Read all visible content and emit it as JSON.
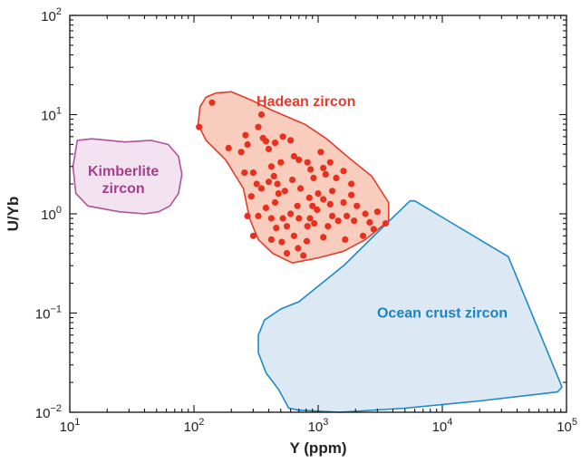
{
  "chart_data": {
    "type": "scatter",
    "xlabel": "Y (ppm)",
    "ylabel": "U/Yb",
    "x_scale": "log",
    "y_scale": "log",
    "xlim": [
      10,
      100000
    ],
    "ylim": [
      0.01,
      100
    ],
    "x_ticks": [
      {
        "value": 10,
        "base": "10",
        "exp": "1"
      },
      {
        "value": 100,
        "base": "10",
        "exp": "2"
      },
      {
        "value": 1000,
        "base": "10",
        "exp": "3"
      },
      {
        "value": 10000,
        "base": "10",
        "exp": "4"
      },
      {
        "value": 100000,
        "base": "10",
        "exp": "5"
      }
    ],
    "y_ticks": [
      {
        "value": 0.01,
        "base": "10",
        "exp": "−2"
      },
      {
        "value": 0.1,
        "base": "10",
        "exp": "−1"
      },
      {
        "value": 1,
        "base": "10",
        "exp": "0"
      },
      {
        "value": 10,
        "base": "10",
        "exp": "1"
      },
      {
        "value": 100,
        "base": "10",
        "exp": "2"
      }
    ],
    "grid": false,
    "regions": [
      {
        "name": "Kimberlite zircon",
        "label_lines": [
          "Kimberlite",
          "zircon"
        ],
        "label_at": [
          27,
          2.2
        ],
        "stroke": "#b0519c",
        "fill": "#f3e2f0",
        "text_color": "#a63d8e",
        "polygon": [
          [
            11.5,
            5.5
          ],
          [
            15,
            5.7
          ],
          [
            28,
            5.3
          ],
          [
            45,
            5.5
          ],
          [
            62,
            5.0
          ],
          [
            75,
            3.8
          ],
          [
            80,
            2.5
          ],
          [
            75,
            1.6
          ],
          [
            64,
            1.2
          ],
          [
            52,
            1.05
          ],
          [
            40,
            1.0
          ],
          [
            25,
            1.05
          ],
          [
            14,
            1.2
          ],
          [
            11.2,
            1.6
          ],
          [
            10.6,
            3.0
          ]
        ]
      },
      {
        "name": "Hadean zircon",
        "label_lines": [
          "Hadean zircon"
        ],
        "label_at": [
          800,
          13.5
        ],
        "stroke": "#e53b2b",
        "fill": "#f9cdbd",
        "text_color": "#e53b2b",
        "polygon": [
          [
            150,
            16.5
          ],
          [
            200,
            17
          ],
          [
            290,
            14
          ],
          [
            430,
            11
          ],
          [
            780,
            8
          ],
          [
            1150,
            5.8
          ],
          [
            1800,
            3.6
          ],
          [
            2700,
            2.4
          ],
          [
            3700,
            1.3
          ],
          [
            3700,
            0.85
          ],
          [
            2400,
            0.55
          ],
          [
            1600,
            0.42
          ],
          [
            1000,
            0.36
          ],
          [
            620,
            0.32
          ],
          [
            430,
            0.4
          ],
          [
            330,
            0.55
          ],
          [
            280,
            0.9
          ],
          [
            250,
            1.8
          ],
          [
            180,
            3.5
          ],
          [
            125,
            5.5
          ],
          [
            108,
            8
          ],
          [
            112,
            12
          ],
          [
            125,
            15
          ]
        ]
      },
      {
        "name": "Ocean crust zircon",
        "label_lines": [
          "Ocean crust zircon"
        ],
        "label_at": [
          10000,
          0.1
        ],
        "stroke": "#1c8ac6",
        "fill": "#dce9f5",
        "text_color": "#1c82c1",
        "polygon": [
          [
            5500,
            1.35
          ],
          [
            6000,
            1.35
          ],
          [
            34000,
            0.37
          ],
          [
            92000,
            0.018
          ],
          [
            85000,
            0.016
          ],
          [
            20000,
            0.013
          ],
          [
            5000,
            0.011
          ],
          [
            1500,
            0.01
          ],
          [
            700,
            0.0105
          ],
          [
            580,
            0.011
          ],
          [
            480,
            0.017
          ],
          [
            380,
            0.025
          ],
          [
            330,
            0.04
          ],
          [
            330,
            0.06
          ],
          [
            370,
            0.085
          ],
          [
            500,
            0.11
          ],
          [
            700,
            0.13
          ],
          [
            1600,
            0.3
          ],
          [
            3000,
            0.65
          ]
        ]
      }
    ],
    "series": [
      {
        "name": "Hadean zircon",
        "color": "#e8301e",
        "points": [
          [
            140,
            13.2
          ],
          [
            110,
            7.5
          ],
          [
            190,
            4.6
          ],
          [
            240,
            4.2
          ],
          [
            260,
            6.2
          ],
          [
            270,
            5.0
          ],
          [
            330,
            7.5
          ],
          [
            350,
            10.0
          ],
          [
            360,
            5.8
          ],
          [
            380,
            5.4
          ],
          [
            400,
            4.5
          ],
          [
            450,
            5.2
          ],
          [
            520,
            6.0
          ],
          [
            600,
            5.5
          ],
          [
            640,
            3.8
          ],
          [
            500,
            3.3
          ],
          [
            420,
            3.0
          ],
          [
            300,
            2.6
          ],
          [
            255,
            2.6
          ],
          [
            320,
            2.0
          ],
          [
            290,
            1.5
          ],
          [
            350,
            1.8
          ],
          [
            400,
            2.1
          ],
          [
            440,
            2.4
          ],
          [
            470,
            2.0
          ],
          [
            480,
            1.6
          ],
          [
            540,
            1.7
          ],
          [
            620,
            2.2
          ],
          [
            700,
            3.5
          ],
          [
            820,
            3.3
          ],
          [
            870,
            2.8
          ],
          [
            920,
            2.3
          ],
          [
            1050,
            4.2
          ],
          [
            1100,
            2.9
          ],
          [
            1150,
            2.5
          ],
          [
            1250,
            3.3
          ],
          [
            1400,
            2.3
          ],
          [
            1600,
            2.7
          ],
          [
            1850,
            2.0
          ],
          [
            1300,
            1.7
          ],
          [
            1000,
            1.6
          ],
          [
            980,
            1.1
          ],
          [
            900,
            1.2
          ],
          [
            850,
            1.45
          ],
          [
            680,
            1.2
          ],
          [
            600,
            1.0
          ],
          [
            700,
            0.9
          ],
          [
            520,
            0.9
          ],
          [
            450,
            1.3
          ],
          [
            380,
            1.15
          ],
          [
            330,
            0.95
          ],
          [
            270,
            0.95
          ],
          [
            300,
            0.6
          ],
          [
            420,
            0.55
          ],
          [
            460,
            0.72
          ],
          [
            510,
            0.52
          ],
          [
            560,
            0.75
          ],
          [
            640,
            0.6
          ],
          [
            690,
            0.45
          ],
          [
            810,
            0.53
          ],
          [
            820,
            0.75
          ],
          [
            930,
            0.8
          ],
          [
            1100,
            0.58
          ],
          [
            1300,
            0.95
          ],
          [
            1450,
            0.85
          ],
          [
            1600,
            1.3
          ],
          [
            1700,
            0.95
          ],
          [
            1950,
            0.85
          ],
          [
            2050,
            1.2
          ],
          [
            2400,
            1.0
          ],
          [
            2600,
            0.82
          ],
          [
            2800,
            0.7
          ],
          [
            2300,
            0.6
          ],
          [
            1650,
            0.55
          ],
          [
            1200,
            0.75
          ],
          [
            760,
            0.38
          ],
          [
            560,
            0.4
          ],
          [
            420,
            0.9
          ],
          [
            1100,
            1.4
          ],
          [
            720,
            1.8
          ],
          [
            3000,
            1.05
          ],
          [
            3500,
            0.8
          ],
          [
            1850,
            1.55
          ],
          [
            1250,
            1.25
          ],
          [
            860,
            0.9
          ]
        ]
      }
    ]
  }
}
